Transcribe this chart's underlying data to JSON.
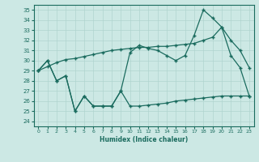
{
  "xlabel": "Humidex (Indice chaleur)",
  "bg_color": "#cce8e4",
  "line_color": "#1a6b5e",
  "grid_color": "#b0d4cf",
  "xlim": [
    -0.5,
    23.5
  ],
  "ylim": [
    23.5,
    35.5
  ],
  "yticks": [
    24,
    25,
    26,
    27,
    28,
    29,
    30,
    31,
    32,
    33,
    34,
    35
  ],
  "xticks": [
    0,
    1,
    2,
    3,
    4,
    5,
    6,
    7,
    8,
    9,
    10,
    11,
    12,
    13,
    14,
    15,
    16,
    17,
    18,
    19,
    20,
    21,
    22,
    23
  ],
  "s_bottom": [
    29.0,
    30.0,
    28.0,
    28.5,
    25.0,
    26.5,
    25.5,
    25.5,
    25.5,
    27.0,
    25.5,
    25.5,
    25.6,
    25.7,
    25.8,
    26.0,
    26.1,
    26.2,
    26.3,
    26.4,
    26.5,
    26.5,
    26.5,
    26.5
  ],
  "s_trend": [
    29.0,
    29.4,
    29.8,
    30.1,
    30.2,
    30.4,
    30.6,
    30.8,
    31.0,
    31.1,
    31.2,
    31.3,
    31.3,
    31.4,
    31.4,
    31.5,
    31.6,
    31.7,
    32.0,
    32.3,
    33.3,
    32.0,
    31.0,
    29.3
  ],
  "s_main": [
    29.0,
    30.0,
    28.0,
    28.5,
    25.0,
    26.5,
    25.5,
    25.5,
    25.5,
    27.0,
    30.8,
    31.5,
    31.2,
    31.0,
    30.5,
    30.0,
    30.5,
    32.5,
    35.0,
    34.2,
    33.3,
    30.5,
    29.3,
    26.5
  ]
}
